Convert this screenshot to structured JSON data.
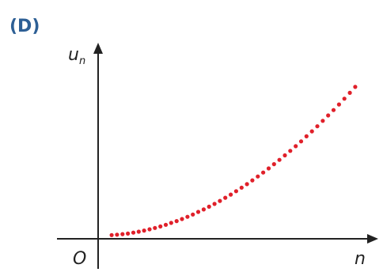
{
  "panel_label": "(D)",
  "chart_data": {
    "type": "scatter",
    "ylabel_main": "u",
    "ylabel_sub": "n",
    "xlabel": "n",
    "origin_label": "O",
    "grid": false,
    "legend": "none",
    "point_color": "#e0202a",
    "x_range": [
      0,
      10
    ],
    "y_range": [
      0,
      10
    ],
    "series": [
      {
        "x": [
          0.5,
          0.7,
          0.9,
          1.1,
          1.3,
          1.5,
          1.7,
          1.9,
          2.1,
          2.3,
          2.5,
          2.7,
          2.9,
          3.1,
          3.3,
          3.5,
          3.7,
          3.9,
          4.1,
          4.3,
          4.5,
          4.7,
          4.9,
          5.1,
          5.3,
          5.5,
          5.7,
          5.9,
          6.1,
          6.3,
          6.5,
          6.7,
          6.9,
          7.1,
          7.3,
          7.5,
          7.7,
          7.9,
          8.1,
          8.3,
          8.5,
          8.7,
          8.9,
          9.1,
          9.3,
          9.5
        ],
        "y": [
          0.2,
          0.22,
          0.25,
          0.28,
          0.33,
          0.38,
          0.44,
          0.51,
          0.58,
          0.66,
          0.75,
          0.85,
          0.95,
          1.06,
          1.18,
          1.3,
          1.44,
          1.57,
          1.72,
          1.87,
          2.03,
          2.2,
          2.37,
          2.55,
          2.74,
          2.93,
          3.13,
          3.34,
          3.55,
          3.77,
          4.0,
          4.23,
          4.47,
          4.71,
          4.96,
          5.22,
          5.49,
          5.76,
          6.03,
          6.32,
          6.61,
          6.9,
          7.2,
          7.51,
          7.82,
          8.14
        ]
      }
    ]
  }
}
